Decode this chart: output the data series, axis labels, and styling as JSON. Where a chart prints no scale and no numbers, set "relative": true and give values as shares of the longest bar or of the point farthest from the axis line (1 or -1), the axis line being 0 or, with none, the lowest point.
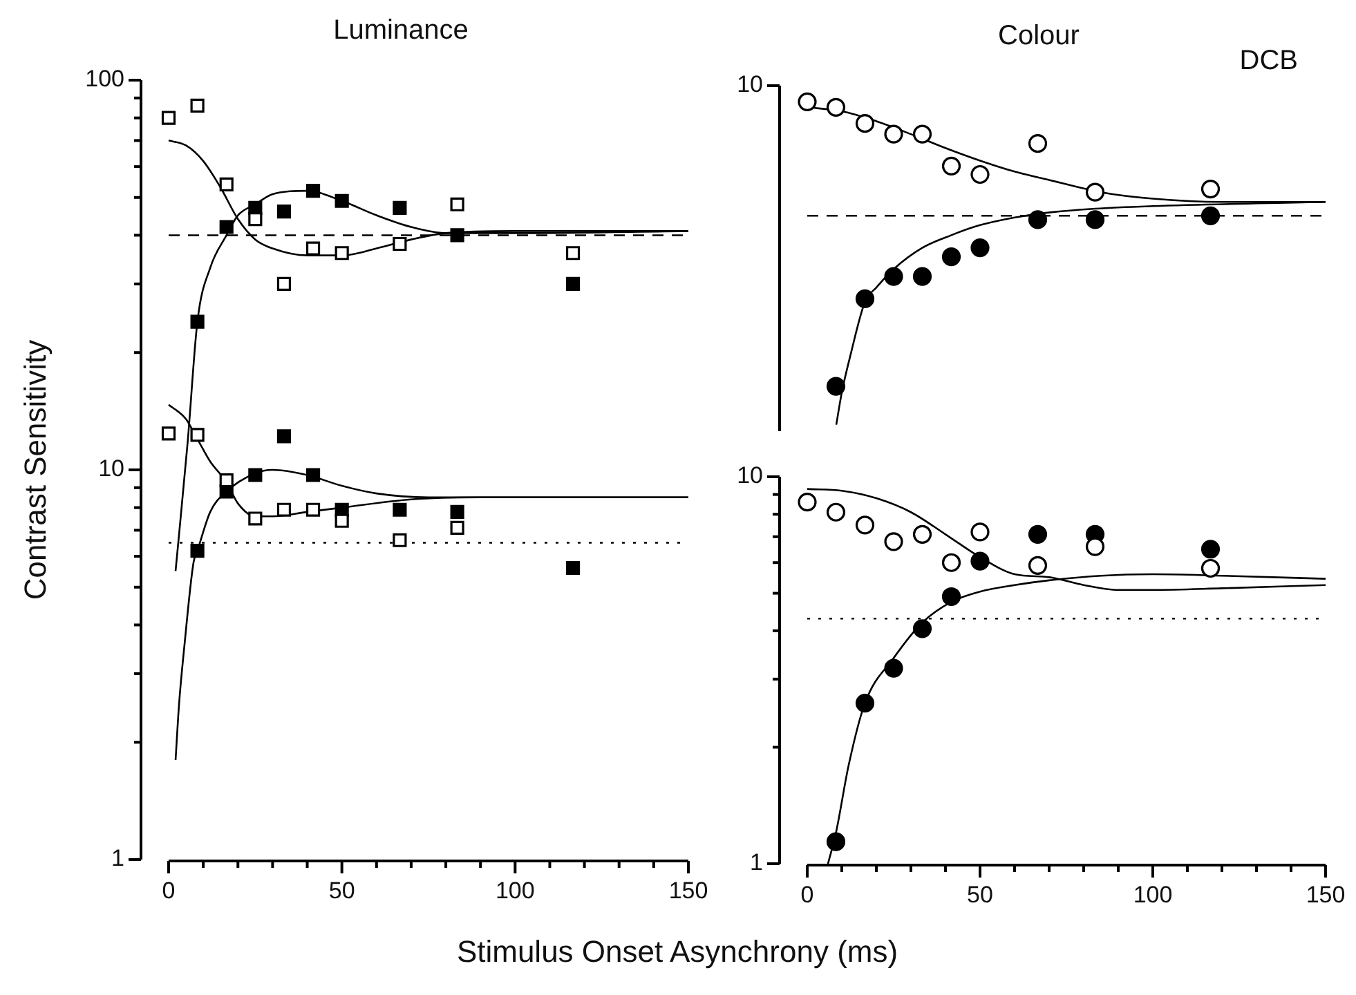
{
  "chart_data": [
    {
      "type": "scatter",
      "title": "Luminance",
      "xlabel": "Stimulus Onset Asynchrony (ms)",
      "ylabel": "Contrast Sensitivity",
      "log": "y",
      "xlim": [
        0,
        150
      ],
      "xticks": [
        0,
        50,
        100,
        150
      ],
      "ylim": [
        1,
        100
      ],
      "yticks": [
        1,
        10,
        100
      ],
      "ref_lines": [
        {
          "axis": "y",
          "value": 40,
          "line_style": "dashed",
          "color": "#000000"
        },
        {
          "axis": "y",
          "value": 6.5,
          "line_style": "dotted",
          "color": "#000000"
        }
      ],
      "series": [
        {
          "type": "scatter",
          "marker": "square",
          "color": "#ffffff",
          "x": [
            0,
            8.3,
            16.7,
            25,
            33.3,
            41.7,
            50,
            66.7,
            83.3,
            116.7
          ],
          "values": [
            80,
            86,
            54,
            44,
            30,
            37,
            36,
            38,
            48,
            36
          ]
        },
        {
          "type": "scatter",
          "marker": "square",
          "color": "#000000",
          "x": [
            8.3,
            16.7,
            25,
            33.3,
            41.7,
            50,
            66.7,
            83.3,
            116.7
          ],
          "values": [
            24,
            42,
            47,
            46,
            52,
            49,
            47,
            40,
            30
          ]
        },
        {
          "type": "scatter",
          "marker": "square",
          "color": "#ffffff",
          "x": [
            0,
            8.3,
            16.7,
            25,
            33.3,
            41.7,
            50,
            66.7,
            83.3
          ],
          "values": [
            12.4,
            12.3,
            9.4,
            7.5,
            7.9,
            7.9,
            7.4,
            6.6,
            7.1
          ]
        },
        {
          "type": "scatter",
          "marker": "square",
          "color": "#000000",
          "x": [
            8.3,
            16.7,
            25,
            33.3,
            41.7,
            50,
            66.7,
            83.3,
            116.7
          ],
          "values": [
            6.2,
            8.8,
            9.7,
            12.2,
            9.7,
            7.9,
            7.9,
            7.8,
            5.6
          ]
        },
        {
          "type": "line",
          "color": "#000000",
          "x": [
            0,
            5,
            10,
            15,
            20,
            25,
            30,
            40,
            50,
            60,
            70,
            80,
            100,
            150
          ],
          "values": [
            70,
            68,
            62,
            53,
            44,
            39,
            37,
            35.5,
            35.5,
            37,
            39,
            40.5,
            41,
            41
          ]
        },
        {
          "type": "line",
          "color": "#000000",
          "x": [
            2,
            5.5,
            8.3,
            12,
            16.7,
            20,
            25,
            30,
            40,
            50,
            60,
            70,
            80,
            100,
            150
          ],
          "values": [
            5.5,
            11.8,
            24,
            33,
            40,
            45,
            48,
            51,
            52,
            49,
            45,
            42,
            40.5,
            40.5,
            41
          ]
        },
        {
          "type": "line",
          "color": "#000000",
          "x": [
            0,
            5,
            8.3,
            12,
            16.7,
            20,
            25,
            30,
            40,
            50,
            70,
            90,
            150
          ],
          "values": [
            14.7,
            13.5,
            12,
            10.5,
            9.3,
            8.2,
            7.6,
            7.6,
            7.8,
            8,
            8.4,
            8.5,
            8.5
          ]
        },
        {
          "type": "line",
          "color": "#000000",
          "x": [
            2,
            3,
            4.5,
            7.2,
            8.3,
            12,
            16.7,
            25,
            30,
            40,
            50,
            60,
            75,
            150
          ],
          "values": [
            1.8,
            2.5,
            3.5,
            5.8,
            6.2,
            7.8,
            8.8,
            9.8,
            10,
            9.7,
            9.1,
            8.7,
            8.5,
            8.5
          ]
        }
      ]
    },
    {
      "type": "scatter",
      "title": "Colour",
      "annotations": [
        "DCB",
        "10"
      ],
      "tick_labels": "y",
      "relative": true,
      "xlim": [
        0,
        150
      ],
      "ref_lines": [
        {
          "axis": "y",
          "value": 0.647,
          "line_style": "dashed",
          "color": "#000000"
        }
      ],
      "series": [
        {
          "type": "scatter",
          "marker": "circle",
          "color": "#ffffff",
          "x": [
            0,
            8.3,
            16.7,
            25,
            33.3,
            41.7,
            50,
            66.7,
            83.3,
            116.7
          ],
          "values": [
            1,
            0.983,
            0.933,
            0.9,
            0.9,
            0.801,
            0.775,
            0.871,
            0.72,
            0.73
          ]
        },
        {
          "type": "scatter",
          "marker": "circle",
          "color": "#000000",
          "x": [
            8.3,
            16.7,
            25,
            33.3,
            41.7,
            50,
            66.7,
            83.3,
            116.7
          ],
          "values": [
            0.119,
            0.39,
            0.459,
            0.459,
            0.52,
            0.548,
            0.635,
            0.635,
            0.647
          ]
        },
        {
          "type": "line",
          "color": "#000000",
          "x": [
            0,
            10,
            20,
            30,
            40,
            50,
            60,
            70,
            85,
            100,
            120,
            150
          ],
          "values": [
            0.983,
            0.971,
            0.94,
            0.9,
            0.857,
            0.818,
            0.784,
            0.758,
            0.72,
            0.7,
            0.69,
            0.69
          ]
        },
        {
          "type": "line",
          "color": "#000000",
          "x": [
            8.4,
            10,
            12.5,
            16.7,
            20,
            25,
            33.3,
            41.7,
            50,
            66.7,
            83.3,
            100,
            150
          ],
          "values": [
            0,
            0.1,
            0.215,
            0.38,
            0.425,
            0.482,
            0.548,
            0.587,
            0.618,
            0.653,
            0.669,
            0.677,
            0.69
          ]
        }
      ]
    },
    {
      "type": "scatter",
      "log": "y",
      "xlim": [
        0,
        150
      ],
      "xticks": [
        0,
        50,
        100,
        150
      ],
      "ylim": [
        1,
        10
      ],
      "yticks": [
        1,
        10
      ],
      "ref_lines": [
        {
          "axis": "y",
          "value": 4.3,
          "line_style": "dotted",
          "color": "#000000"
        }
      ],
      "series": [
        {
          "type": "scatter",
          "marker": "circle",
          "color": "#ffffff",
          "x": [
            0,
            8.3,
            16.7,
            25,
            33.3,
            41.7,
            50,
            66.7,
            83.3,
            116.7
          ],
          "values": [
            8.6,
            8.1,
            7.5,
            6.8,
            7.1,
            6,
            7.2,
            5.9,
            6.6,
            5.8
          ]
        },
        {
          "type": "scatter",
          "marker": "circle",
          "color": "#000000",
          "x": [
            8.3,
            16.7,
            25,
            33.3,
            41.7,
            50,
            66.7,
            83.3,
            116.7
          ],
          "values": [
            1.14,
            2.6,
            3.2,
            4.05,
            4.9,
            6.05,
            7.1,
            7.1,
            6.5
          ]
        },
        {
          "type": "line",
          "color": "#000000",
          "x": [
            0,
            10,
            20,
            30,
            40,
            50,
            60,
            70,
            80,
            90,
            100,
            120,
            150
          ],
          "values": [
            9.3,
            9.2,
            8.8,
            8.1,
            7.1,
            6.2,
            5.6,
            5.5,
            5.25,
            5.1,
            5.1,
            5.15,
            5.25
          ]
        },
        {
          "type": "line",
          "color": "#000000",
          "x": [
            6,
            8.3,
            12,
            16.7,
            25,
            33.3,
            41.7,
            50,
            60,
            70,
            85,
            100,
            120,
            150
          ],
          "values": [
            1,
            1.2,
            1.8,
            2.6,
            3.4,
            4.2,
            4.75,
            5.05,
            5.25,
            5.4,
            5.55,
            5.6,
            5.55,
            5.45
          ]
        }
      ]
    }
  ]
}
